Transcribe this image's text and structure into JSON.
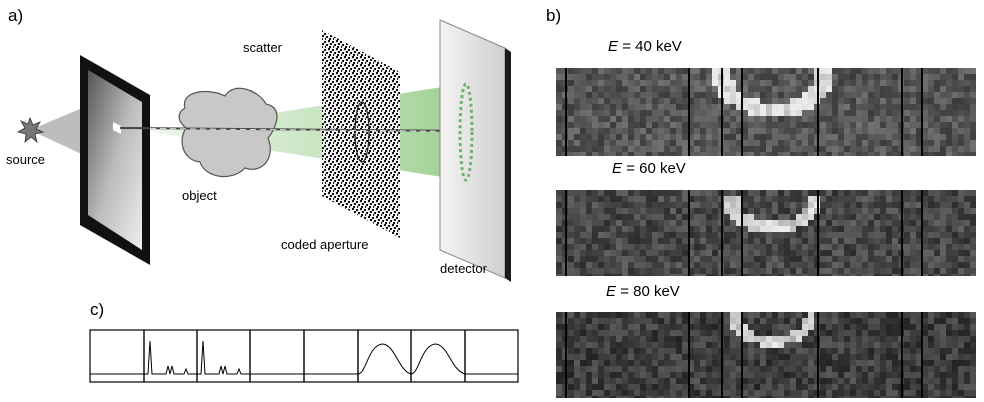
{
  "panels": {
    "a": "a)",
    "b": "b)",
    "c": "c)"
  },
  "labels": {
    "source": "source",
    "object": "object",
    "scatter": "scatter",
    "coded_aperture": "coded aperture",
    "detector": "detector"
  },
  "energy_images": [
    {
      "symbol": "E",
      "value": "= 40 keV"
    },
    {
      "symbol": "E",
      "value": "= 60 keV"
    },
    {
      "symbol": "E",
      "value": "= 80 keV"
    }
  ],
  "colors": {
    "beam": "#9fcf95",
    "aperture_frame": "#111111",
    "detector_plate": "#e8e8e8"
  }
}
